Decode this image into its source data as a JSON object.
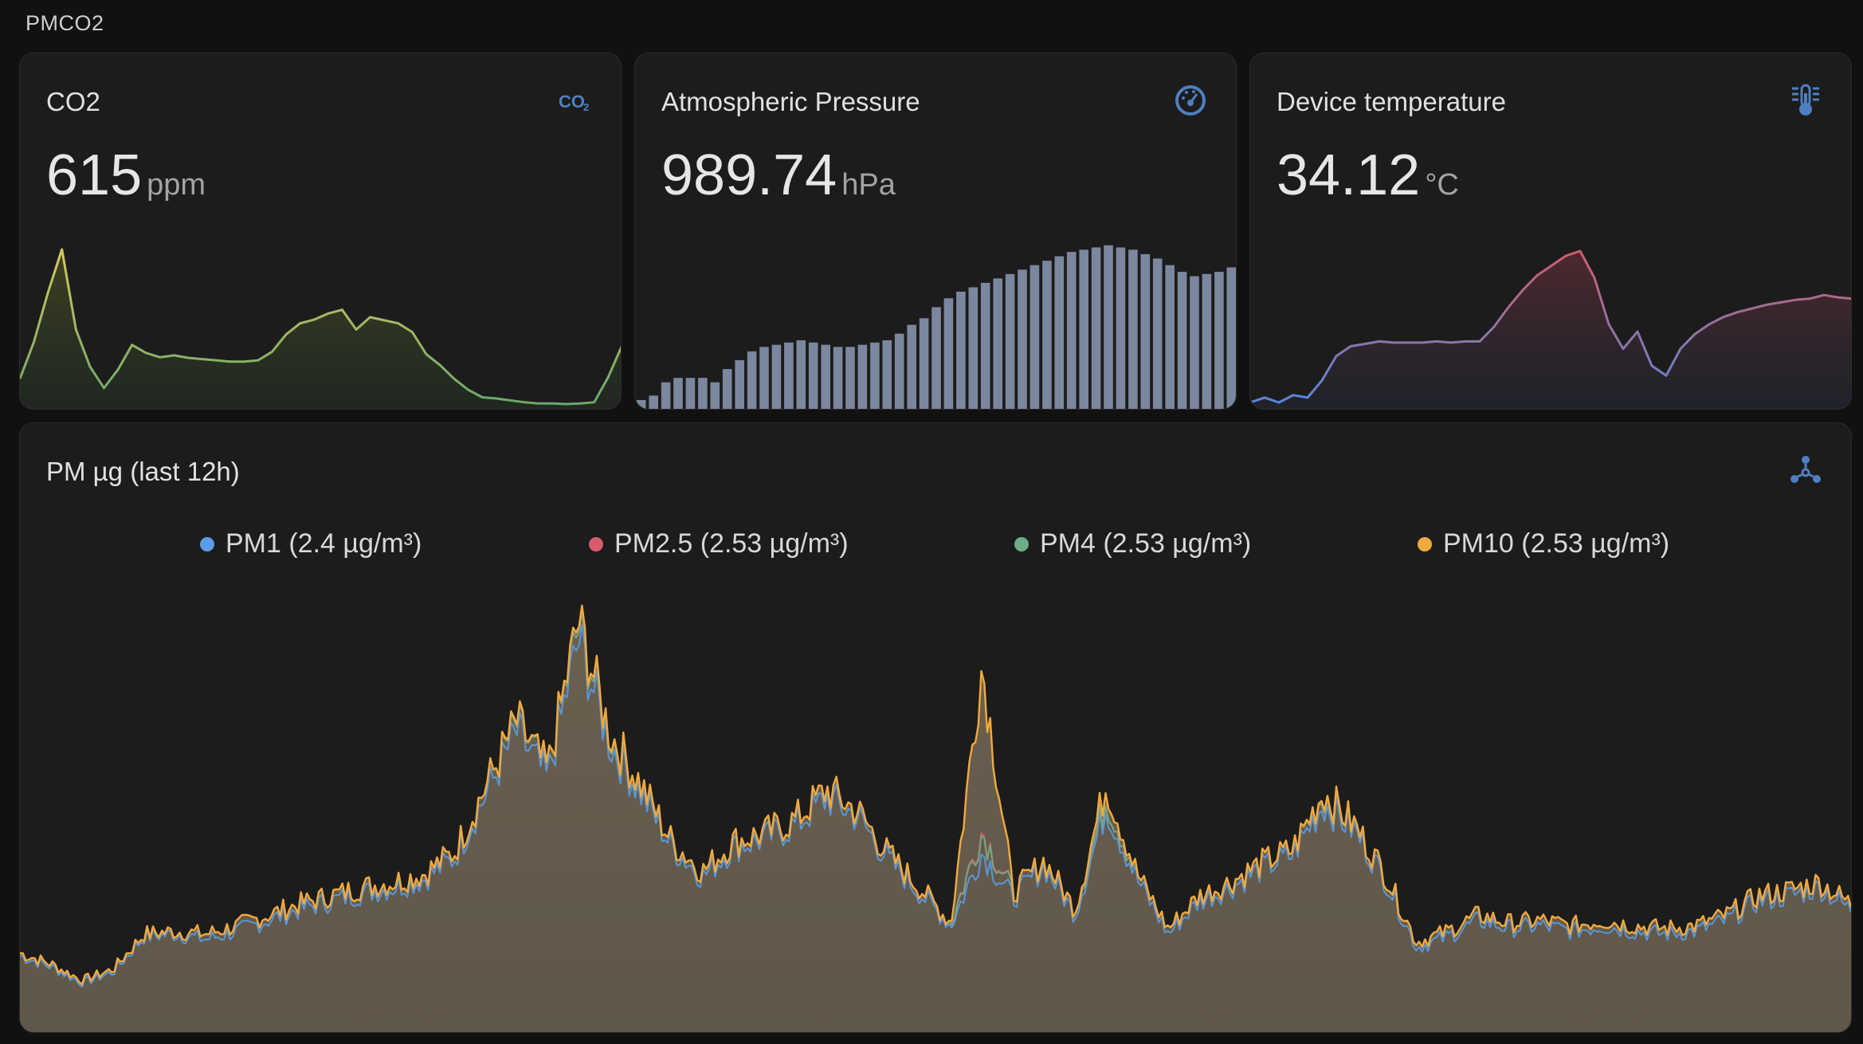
{
  "section_title": "PMCO2",
  "cards": {
    "co2": {
      "title": "CO2",
      "value": "615",
      "unit": "ppm",
      "icon": "co2-icon",
      "color": "#c9c35b"
    },
    "pressure": {
      "title": "Atmospheric Pressure",
      "value": "989.74",
      "unit": "hPa",
      "icon": "gauge-icon",
      "color": "#7c8aa3"
    },
    "temperature": {
      "title": "Device temperature",
      "value": "34.12",
      "unit": "°C",
      "icon": "thermometer-icon"
    }
  },
  "pm_card": {
    "title": "PM µg (last 12h)",
    "icon": "molecule-icon",
    "legend": [
      {
        "label": "PM1 (2.4 µg/m³)",
        "color": "#5a9ce8"
      },
      {
        "label": "PM2.5 (2.53 µg/m³)",
        "color": "#d95b6a"
      },
      {
        "label": "PM4 (2.53 µg/m³)",
        "color": "#6eae86"
      },
      {
        "label": "PM10 (2.53 µg/m³)",
        "color": "#f2a93b"
      }
    ]
  },
  "chart_data": [
    {
      "type": "line",
      "series": [
        {
          "values": [
            560,
            620,
            700,
            770,
            640,
            580,
            545,
            575,
            615,
            602,
            595,
            598,
            594,
            592,
            590,
            588,
            588,
            590,
            604,
            632,
            650,
            656,
            666,
            672,
            640,
            660,
            655,
            650,
            636,
            600,
            582,
            560,
            542,
            530,
            528,
            525,
            522,
            520,
            520,
            519,
            520,
            522,
            563,
            615
          ]
        }
      ]
    },
    {
      "type": "bar",
      "series": [
        {
          "values": [
            988.2,
            988.3,
            988.6,
            988.7,
            988.7,
            988.7,
            988.6,
            988.9,
            989.1,
            989.3,
            989.4,
            989.45,
            989.5,
            989.55,
            989.5,
            989.45,
            989.4,
            989.4,
            989.45,
            989.5,
            989.55,
            989.7,
            989.9,
            990.05,
            990.3,
            990.5,
            990.65,
            990.75,
            990.85,
            990.95,
            991.05,
            991.15,
            991.25,
            991.35,
            991.45,
            991.55,
            991.6,
            991.65,
            991.7,
            991.65,
            991.6,
            991.5,
            991.4,
            991.25,
            991.1,
            991.0,
            991.05,
            991.1,
            991.2
          ]
        }
      ]
    },
    {
      "type": "line",
      "series": [
        {
          "values": [
            30.3,
            30.5,
            30.3,
            30.6,
            30.5,
            31.2,
            32.2,
            32.6,
            32.7,
            32.8,
            32.75,
            32.75,
            32.75,
            32.8,
            32.75,
            32.8,
            32.8,
            33.4,
            34.2,
            34.9,
            35.5,
            35.9,
            36.3,
            36.5,
            35.4,
            33.5,
            32.5,
            33.2,
            31.8,
            31.4,
            32.5,
            33.1,
            33.5,
            33.8,
            34.0,
            34.15,
            34.3,
            34.4,
            34.5,
            34.55,
            34.7,
            34.6,
            34.55
          ]
        }
      ]
    },
    {
      "type": "area",
      "series": [
        {
          "name": "PM1",
          "values": [
            2.8,
            2.4,
            1.8,
            2.2,
            3.5,
            3.6,
            3.4,
            3.7,
            4.1,
            4.5,
            4.8,
            5.1,
            5.3,
            5.6,
            6.4,
            8.7,
            11.0,
            9.3,
            14.4,
            10.6,
            8.8,
            6.8,
            5.7,
            6.8,
            7.1,
            7.6,
            8.6,
            7.9,
            6.3,
            5.1,
            3.9,
            6.6,
            4.9,
            6.1,
            4.3,
            8.3,
            5.6,
            3.6,
            4.8,
            5.3,
            6.0,
            6.5,
            8.4,
            7.4,
            5.6,
            3.1,
            3.5,
            4.1,
            3.8,
            3.9,
            3.7,
            3.9,
            3.7,
            3.6,
            3.7,
            4.1,
            4.8,
            5.0,
            5.3,
            4.5
          ]
        },
        {
          "name": "PM2.5",
          "values": [
            2.9,
            2.5,
            1.9,
            2.3,
            3.6,
            3.7,
            3.6,
            3.9,
            4.3,
            4.7,
            5.0,
            5.3,
            5.5,
            5.8,
            6.6,
            9.0,
            11.3,
            9.6,
            14.9,
            10.9,
            9.1,
            7.0,
            5.9,
            7.0,
            7.3,
            7.8,
            8.9,
            8.1,
            6.5,
            5.3,
            4.0,
            7.4,
            5.1,
            6.3,
            4.5,
            8.6,
            5.8,
            3.8,
            5.0,
            5.5,
            6.2,
            6.7,
            8.7,
            7.6,
            5.8,
            3.3,
            3.7,
            4.3,
            4.0,
            4.1,
            3.9,
            4.1,
            3.9,
            3.8,
            3.9,
            4.3,
            5.0,
            5.2,
            5.5,
            4.7
          ]
        },
        {
          "name": "PM4",
          "values": [
            2.9,
            2.5,
            1.9,
            2.3,
            3.6,
            3.7,
            3.6,
            3.9,
            4.3,
            4.7,
            5.0,
            5.3,
            5.5,
            5.8,
            6.6,
            9.0,
            11.3,
            9.6,
            14.9,
            10.9,
            9.1,
            7.0,
            5.9,
            7.0,
            7.3,
            7.8,
            8.9,
            8.1,
            6.5,
            5.3,
            4.0,
            7.3,
            5.1,
            6.3,
            4.5,
            8.6,
            5.8,
            3.8,
            5.0,
            5.5,
            6.2,
            6.7,
            8.7,
            7.6,
            5.8,
            3.3,
            3.7,
            4.3,
            4.0,
            4.1,
            3.9,
            4.1,
            3.9,
            3.8,
            3.9,
            4.3,
            5.0,
            5.2,
            5.5,
            4.7
          ]
        },
        {
          "name": "PM10",
          "values": [
            2.9,
            2.5,
            1.9,
            2.3,
            3.6,
            3.7,
            3.6,
            3.9,
            4.3,
            4.7,
            5.0,
            5.3,
            5.5,
            5.8,
            6.6,
            9.0,
            11.4,
            9.6,
            15.1,
            11.0,
            9.1,
            7.0,
            5.9,
            7.0,
            7.3,
            7.8,
            8.9,
            8.1,
            6.5,
            5.3,
            4.0,
            13.5,
            5.1,
            6.3,
            4.5,
            9.1,
            5.8,
            3.8,
            5.0,
            5.5,
            6.2,
            6.7,
            8.8,
            7.6,
            5.8,
            3.3,
            3.7,
            4.3,
            4.0,
            4.1,
            3.9,
            4.1,
            3.9,
            3.8,
            3.9,
            4.3,
            5.0,
            5.2,
            5.5,
            4.7
          ]
        }
      ]
    }
  ]
}
